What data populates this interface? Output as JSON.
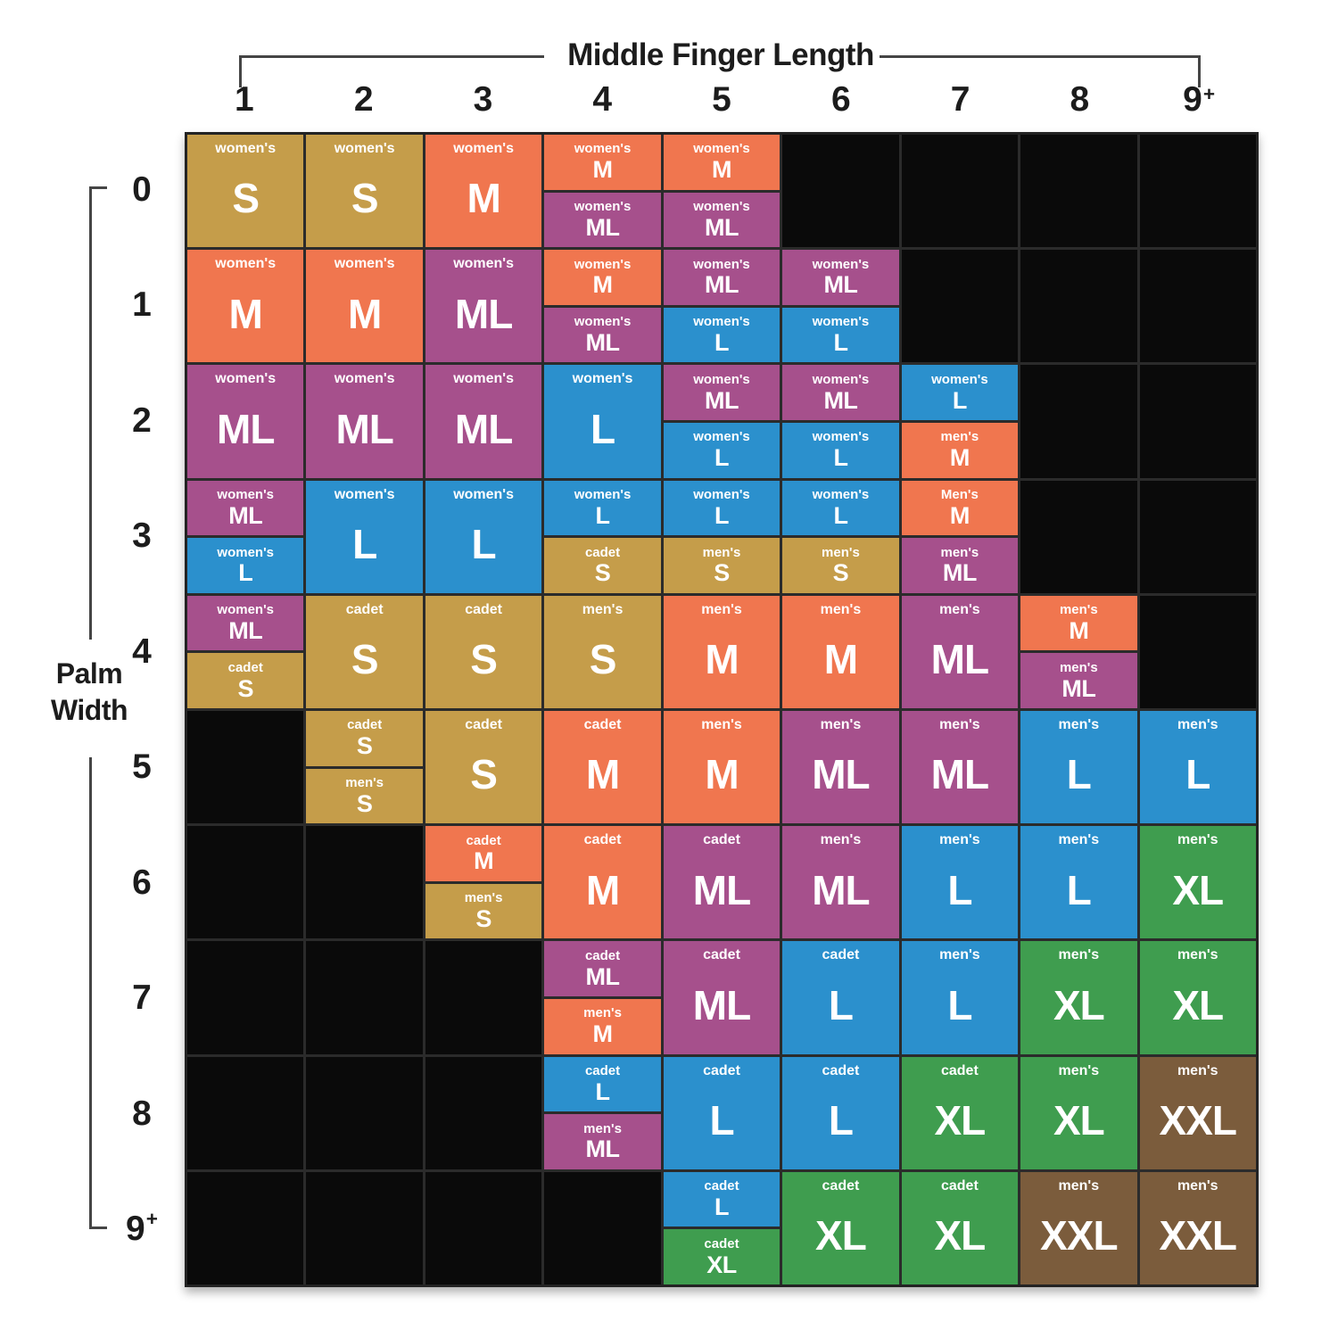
{
  "title": "Middle Finger Length",
  "y_axis": {
    "label": "Palm Width",
    "line1": "Palm",
    "line2": "Width"
  },
  "size_colors": {
    "S": "#c59d4a",
    "M": "#f0764f",
    "ML": "#a6508c",
    "L": "#2b90cd",
    "XL": "#3f9d4f",
    "XXL": "#7b5c3c"
  },
  "palette": {
    "empty_cell": "#0a0a0a",
    "grid_line": "#2b2b2b",
    "axis_text": "#1c1c1c",
    "cell_text": "#ffffff",
    "bracket_line": "#454545",
    "background": "#ffffff"
  },
  "chart_data": {
    "type": "heatmap",
    "title": "Middle Finger Length",
    "xlabel": "Middle Finger Length",
    "ylabel": "Palm Width",
    "x_categories": [
      "1",
      "2",
      "3",
      "4",
      "5",
      "6",
      "7",
      "8",
      "9+"
    ],
    "y_categories": [
      "0",
      "1",
      "2",
      "3",
      "4",
      "5",
      "6",
      "7",
      "8",
      "9+"
    ],
    "legend": "each cell segment = [group, glove size]; empty array = no recommendation (black cell)",
    "cells": [
      [
        [
          [
            "women's",
            "S"
          ]
        ],
        [
          [
            "women's",
            "S"
          ]
        ],
        [
          [
            "women's",
            "M"
          ]
        ],
        [
          [
            "women's",
            "M"
          ],
          [
            "women's",
            "ML"
          ]
        ],
        [
          [
            "women's",
            "M"
          ],
          [
            "women's",
            "ML"
          ]
        ],
        [],
        [],
        [],
        []
      ],
      [
        [
          [
            "women's",
            "M"
          ]
        ],
        [
          [
            "women's",
            "M"
          ]
        ],
        [
          [
            "women's",
            "ML"
          ]
        ],
        [
          [
            "women's",
            "M"
          ],
          [
            "women's",
            "ML"
          ]
        ],
        [
          [
            "women's",
            "ML"
          ],
          [
            "women's",
            "L"
          ]
        ],
        [
          [
            "women's",
            "ML"
          ],
          [
            "women's",
            "L"
          ]
        ],
        [],
        [],
        []
      ],
      [
        [
          [
            "women's",
            "ML"
          ]
        ],
        [
          [
            "women's",
            "ML"
          ]
        ],
        [
          [
            "women's",
            "ML"
          ]
        ],
        [
          [
            "women's",
            "L"
          ]
        ],
        [
          [
            "women's",
            "ML"
          ],
          [
            "women's",
            "L"
          ]
        ],
        [
          [
            "women's",
            "ML"
          ],
          [
            "women's",
            "L"
          ]
        ],
        [
          [
            "women's",
            "L"
          ],
          [
            "men's",
            "M"
          ]
        ],
        [],
        []
      ],
      [
        [
          [
            "women's",
            "ML"
          ],
          [
            "women's",
            "L"
          ]
        ],
        [
          [
            "women's",
            "L"
          ]
        ],
        [
          [
            "women's",
            "L"
          ]
        ],
        [
          [
            "women's",
            "L"
          ],
          [
            "cadet",
            "S"
          ]
        ],
        [
          [
            "women's",
            "L"
          ],
          [
            "men's",
            "S"
          ]
        ],
        [
          [
            "women's",
            "L"
          ],
          [
            "men's",
            "S"
          ]
        ],
        [
          [
            "Men's",
            "M"
          ],
          [
            "men's",
            "ML"
          ]
        ],
        [],
        []
      ],
      [
        [
          [
            "women's",
            "ML"
          ],
          [
            "cadet",
            "S"
          ]
        ],
        [
          [
            "cadet",
            "S"
          ]
        ],
        [
          [
            "cadet",
            "S"
          ]
        ],
        [
          [
            "men's",
            "S"
          ]
        ],
        [
          [
            "men's",
            "M"
          ]
        ],
        [
          [
            "men's",
            "M"
          ]
        ],
        [
          [
            "men's",
            "ML"
          ]
        ],
        [
          [
            "men's",
            "M"
          ],
          [
            "men's",
            "ML"
          ]
        ],
        []
      ],
      [
        [],
        [
          [
            "cadet",
            "S"
          ],
          [
            "men's",
            "S"
          ]
        ],
        [
          [
            "cadet",
            "S"
          ]
        ],
        [
          [
            "cadet",
            "M"
          ]
        ],
        [
          [
            "men's",
            "M"
          ]
        ],
        [
          [
            "men's",
            "ML"
          ]
        ],
        [
          [
            "men's",
            "ML"
          ]
        ],
        [
          [
            "men's",
            "L"
          ]
        ],
        [
          [
            "men's",
            "L"
          ]
        ]
      ],
      [
        [],
        [],
        [
          [
            "cadet",
            "M"
          ],
          [
            "men's",
            "S"
          ]
        ],
        [
          [
            "cadet",
            "M"
          ]
        ],
        [
          [
            "cadet",
            "ML"
          ]
        ],
        [
          [
            "men's",
            "ML"
          ]
        ],
        [
          [
            "men's",
            "L"
          ]
        ],
        [
          [
            "men's",
            "L"
          ]
        ],
        [
          [
            "men's",
            "XL"
          ]
        ]
      ],
      [
        [],
        [],
        [],
        [
          [
            "cadet",
            "ML"
          ],
          [
            "men's",
            "M"
          ]
        ],
        [
          [
            "cadet",
            "ML"
          ]
        ],
        [
          [
            "cadet",
            "L"
          ]
        ],
        [
          [
            "men's",
            "L"
          ]
        ],
        [
          [
            "men's",
            "XL"
          ]
        ],
        [
          [
            "men's",
            "XL"
          ]
        ]
      ],
      [
        [],
        [],
        [],
        [
          [
            "cadet",
            "L"
          ],
          [
            "men's",
            "ML"
          ]
        ],
        [
          [
            "cadet",
            "L"
          ]
        ],
        [
          [
            "cadet",
            "L"
          ]
        ],
        [
          [
            "cadet",
            "XL"
          ]
        ],
        [
          [
            "men's",
            "XL"
          ]
        ],
        [
          [
            "men's",
            "XXL"
          ]
        ]
      ],
      [
        [],
        [],
        [],
        [],
        [
          [
            "cadet",
            "L"
          ],
          [
            "cadet",
            "XL"
          ]
        ],
        [
          [
            "cadet",
            "XL"
          ]
        ],
        [
          [
            "cadet",
            "XL"
          ]
        ],
        [
          [
            "men's",
            "XXL"
          ]
        ],
        [
          [
            "men's",
            "XXL"
          ]
        ]
      ]
    ]
  }
}
